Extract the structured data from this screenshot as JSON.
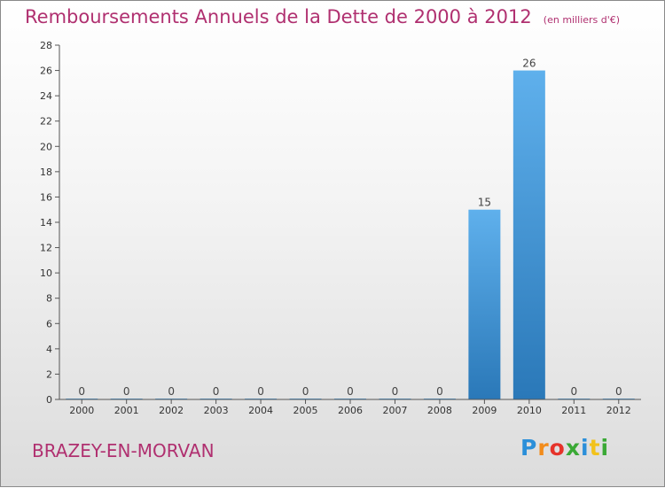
{
  "chart_data": {
    "type": "bar",
    "title": "Remboursements Annuels de la Dette de 2000 à 2012",
    "unit_note": "(en milliers d'€)",
    "categories": [
      "2000",
      "2001",
      "2002",
      "2003",
      "2004",
      "2005",
      "2006",
      "2007",
      "2008",
      "2009",
      "2010",
      "2011",
      "2012"
    ],
    "values": [
      0,
      0,
      0,
      0,
      0,
      0,
      0,
      0,
      0,
      15,
      26,
      0,
      0
    ],
    "ylim": [
      0,
      28
    ],
    "yticks": [
      0,
      2,
      4,
      6,
      8,
      10,
      12,
      14,
      16,
      18,
      20,
      22,
      24,
      26,
      28
    ],
    "grid": false,
    "bar_color_top": "#5fb0ec",
    "bar_color_bottom": "#2a78b8",
    "axis_color": "#555555"
  },
  "footer": {
    "commune": "BRAZEY-EN-MORVAN",
    "brand_letters": [
      "P",
      "r",
      "o",
      "x",
      "i",
      "t",
      "i"
    ],
    "brand_colors": [
      "#2b8fd9",
      "#f28c1b",
      "#e6332a",
      "#3aa935",
      "#2b8fd9",
      "#f2c21b",
      "#3aa935"
    ]
  }
}
